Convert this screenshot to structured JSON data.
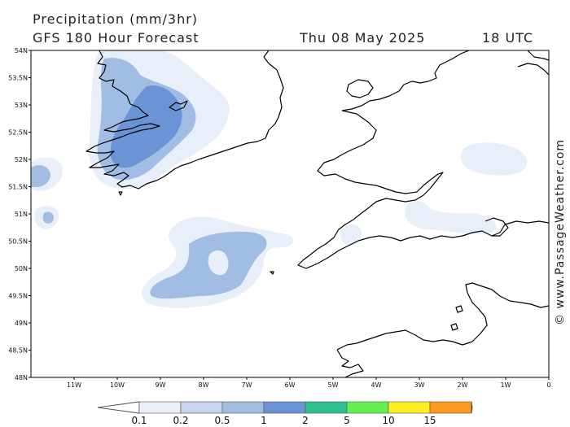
{
  "header": {
    "title": "Precipitation (mm/3hr)",
    "model": "GFS 180 Hour Forecast",
    "date": "Thu 08 May 2025",
    "time": "18 UTC"
  },
  "map": {
    "lat_range": [
      48,
      54
    ],
    "lon_range": [
      -12,
      0
    ],
    "lat_ticks": [
      "54N",
      "53.5N",
      "53N",
      "52.5N",
      "52N",
      "51.5N",
      "51N",
      "50.5N",
      "50N",
      "49.5N",
      "49N",
      "48.5N",
      "48N"
    ],
    "lon_ticks": [
      "11W",
      "10W",
      "9W",
      "8W",
      "7W",
      "6W",
      "5W",
      "4W",
      "3W",
      "2W",
      "1W",
      "0"
    ]
  },
  "colorbar": {
    "labels": [
      "0.1",
      "0.2",
      "0.5",
      "1",
      "2",
      "5",
      "10",
      "15"
    ],
    "colors": [
      "#e8eff9",
      "#c6d6ee",
      "#a1bde3",
      "#6b94d6",
      "#2fbf8f",
      "#66ee55",
      "#ffee22",
      "#ff9922",
      "#ee3333"
    ]
  },
  "credit": "© www.PassageWeather.com"
}
